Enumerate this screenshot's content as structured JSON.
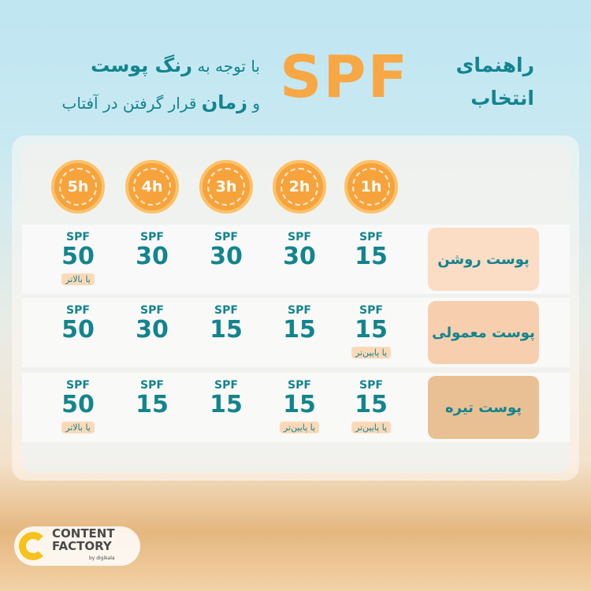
{
  "header": {
    "title_line1": "راهنمای",
    "title_line2": "انتخاب",
    "brand": "SPF",
    "subtitle_line1_a": "با توجه به",
    "subtitle_line1_b": "رنگ پوست",
    "subtitle_line2_a": "و",
    "subtitle_line2_b": "زمان",
    "subtitle_line2_c": "قرار گرفتن در آفتاب"
  },
  "hours": [
    "1h",
    "2h",
    "3h",
    "4h",
    "5h"
  ],
  "rows": [
    {
      "label": "پوست روشن",
      "color": "#fbdcc4",
      "cells": [
        {
          "prefix": "SPF",
          "value": "15"
        },
        {
          "prefix": "SPF",
          "value": "30"
        },
        {
          "prefix": "SPF",
          "value": "30"
        },
        {
          "prefix": "SPF",
          "value": "30"
        },
        {
          "prefix": "SPF",
          "value": "50",
          "note": "یا بالاتر"
        }
      ]
    },
    {
      "label": "پوست معمولی",
      "color": "#f8cfae",
      "cells": [
        {
          "prefix": "SPF",
          "value": "15",
          "note": "یا پایین‌تر"
        },
        {
          "prefix": "SPF",
          "value": "15"
        },
        {
          "prefix": "SPF",
          "value": "15"
        },
        {
          "prefix": "SPF",
          "value": "30"
        },
        {
          "prefix": "SPF",
          "value": "50"
        }
      ]
    },
    {
      "label": "پوست تیره",
      "color": "#e9c093",
      "cells": [
        {
          "prefix": "SPF",
          "value": "15",
          "note": "یا پایین‌تر"
        },
        {
          "prefix": "SPF",
          "value": "15",
          "note": "یا پایین‌تر"
        },
        {
          "prefix": "SPF",
          "value": "15"
        },
        {
          "prefix": "SPF",
          "value": "15"
        },
        {
          "prefix": "SPF",
          "value": "50",
          "note": "یا بالاتر"
        }
      ]
    }
  ],
  "logo": {
    "line1": "CONTENT",
    "line2": "FACTORY",
    "by": "by digikala"
  },
  "colors": {
    "teal": "#13848e",
    "orange": "#f7a844"
  }
}
